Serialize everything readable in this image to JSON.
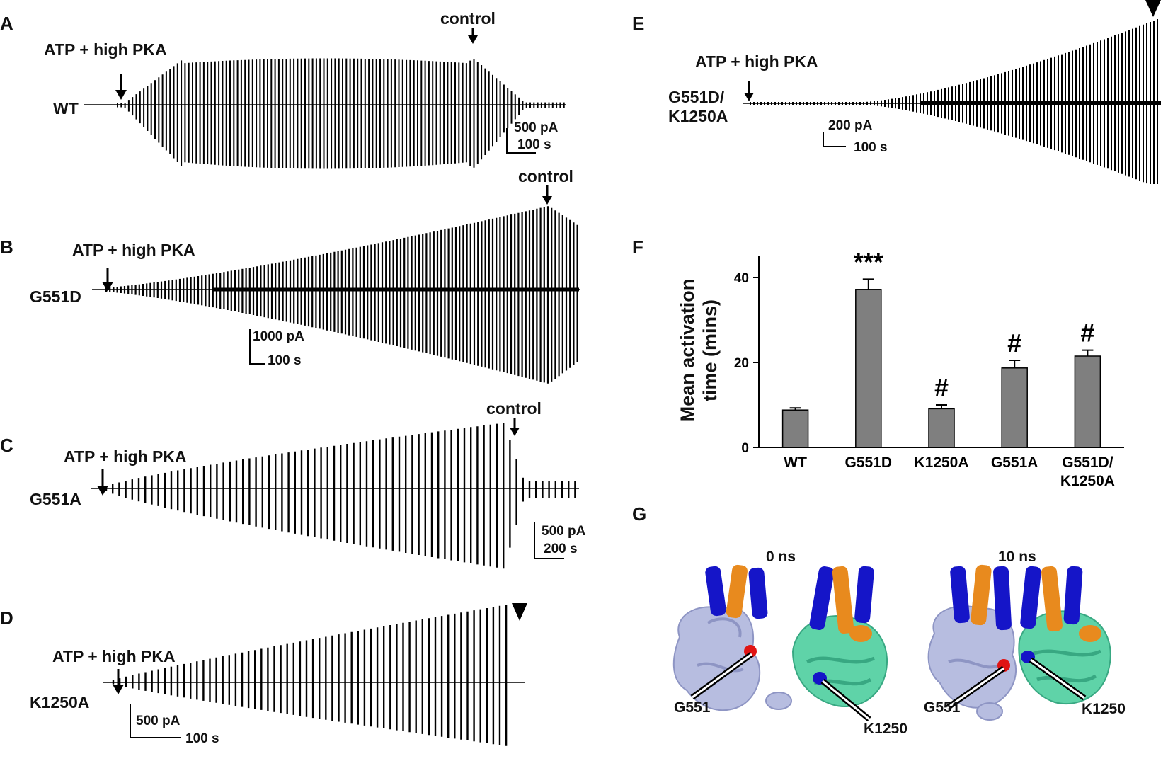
{
  "panels": {
    "A": {
      "letter": "A",
      "construct": "WT",
      "stim_label": "ATP + high PKA",
      "control_label": "control",
      "scale_current": "500 pA",
      "scale_time": "100 s"
    },
    "B": {
      "letter": "B",
      "construct": "G551D",
      "stim_label": "ATP + high PKA",
      "control_label": "control",
      "scale_current": "1000 pA",
      "scale_time": "100 s"
    },
    "C": {
      "letter": "C",
      "construct": "G551A",
      "stim_label": "ATP + high PKA",
      "control_label": "control",
      "scale_current": "500 pA",
      "scale_time": "200 s"
    },
    "D": {
      "letter": "D",
      "construct": "K1250A",
      "stim_label": "ATP + high PKA",
      "scale_current": "500 pA",
      "scale_time": "100 s"
    },
    "E": {
      "letter": "E",
      "construct_line1": "G551D/",
      "construct_line2": "K1250A",
      "stim_label": "ATP + high PKA",
      "scale_current": "200 pA",
      "scale_time": "100 s"
    },
    "F": {
      "letter": "F"
    },
    "G": {
      "letter": "G",
      "time_left": "0 ns",
      "time_right": "10 ns",
      "res_a": "G551",
      "res_b": "K1250"
    }
  },
  "chart_data": {
    "type": "bar",
    "categories": [
      "WT",
      "G551D",
      "K1250A",
      "G551A",
      "G551D/K1250A"
    ],
    "category_labels": [
      [
        "WT"
      ],
      [
        "G551D"
      ],
      [
        "K1250A"
      ],
      [
        "G551A"
      ],
      [
        "G551D/",
        "K1250A"
      ]
    ],
    "values": [
      8.8,
      37.2,
      9.1,
      18.7,
      21.5
    ],
    "errors": [
      0.5,
      2.4,
      0.9,
      1.8,
      1.4
    ],
    "annotations": [
      "",
      "***",
      "#",
      "#",
      "#"
    ],
    "ylabel_line1": "Mean activation",
    "ylabel_line2": "time (mins)",
    "ylim": [
      0,
      45
    ],
    "yticks": [
      0,
      20,
      40
    ],
    "colors": {
      "bar": "#7f7f7f",
      "edge": "#000000"
    }
  }
}
